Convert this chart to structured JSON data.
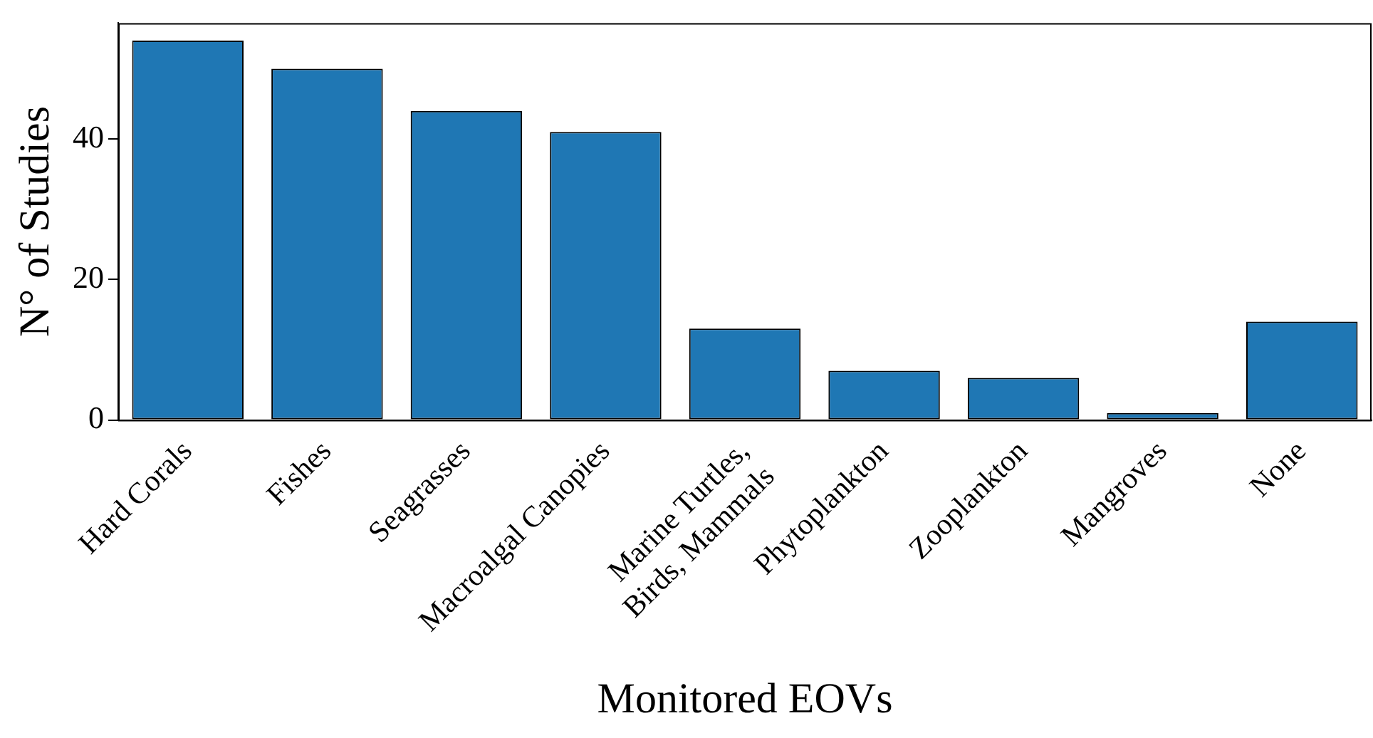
{
  "chart_data": {
    "type": "bar",
    "xlabel": "Monitored EOVs",
    "ylabel": "N° of Studies",
    "categories": [
      "Hard Corals",
      "Fishes",
      "Seagrasses",
      "Macroalgal Canopies",
      "Marine Turtles,\nBirds, Mammals",
      "Phytoplankton",
      "Zooplankton",
      "Mangroves",
      "None"
    ],
    "values": [
      54,
      50,
      44,
      41,
      13,
      7,
      6,
      1,
      14
    ],
    "color": "#1f77b4",
    "ylim": [
      0,
      56.5
    ],
    "yticks": [
      0,
      20,
      40
    ],
    "grid": false,
    "legend": false
  }
}
